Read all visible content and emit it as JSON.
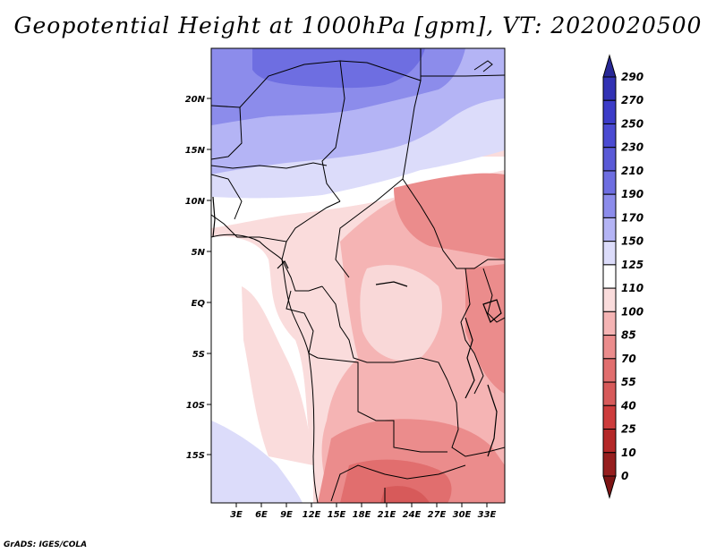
{
  "title": "Geopotential Height at 1000hPa [gpm], VT: 2020020500",
  "footer": "GrADS: IGES/COLA",
  "map": {
    "lat_labels": [
      "20N",
      "15N",
      "10N",
      "5N",
      "EQ",
      "5S",
      "10S",
      "15S"
    ],
    "lon_labels": [
      "3E",
      "6E",
      "9E",
      "12E",
      "15E",
      "18E",
      "21E",
      "24E",
      "27E",
      "30E",
      "33E"
    ]
  },
  "colorbar": {
    "labels": [
      "290",
      "270",
      "250",
      "230",
      "210",
      "190",
      "170",
      "150",
      "125",
      "110",
      "100",
      "85",
      "70",
      "55",
      "40",
      "25",
      "10",
      "0"
    ],
    "colors": [
      "#282896",
      "#3232b4",
      "#3c3cc8",
      "#4b4bd2",
      "#5a5ad7",
      "#6e6ee1",
      "#8c8ceb",
      "#b4b4f5",
      "#dcdcfa",
      "#ffffff",
      "#fadcdc",
      "#f5b4b4",
      "#eb8c8c",
      "#e16e6e",
      "#d75a5a",
      "#cd3c3c",
      "#b42828",
      "#961e1e",
      "#7d1414"
    ]
  }
}
